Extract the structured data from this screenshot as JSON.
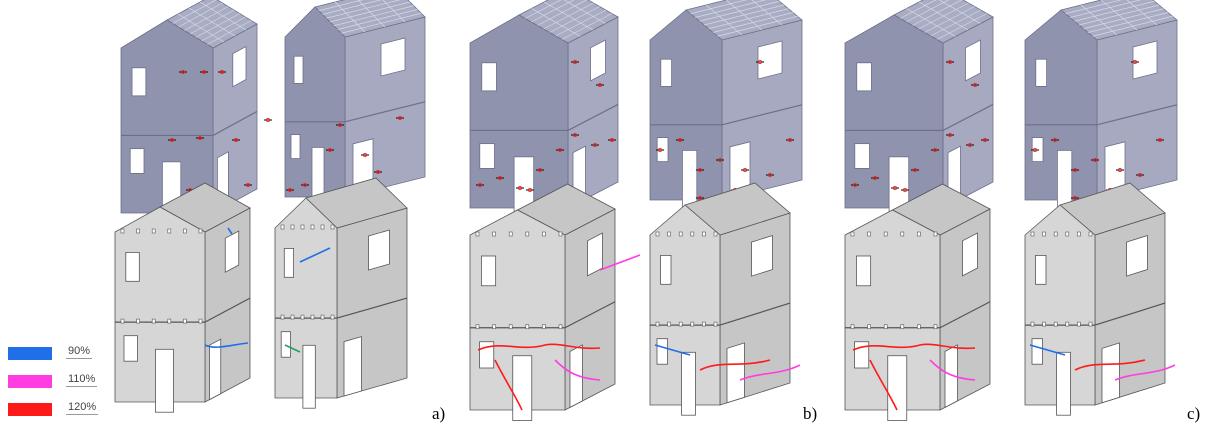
{
  "panels": [
    {
      "id": "a",
      "label": "a)"
    },
    {
      "id": "b",
      "label": "b)"
    },
    {
      "id": "c",
      "label": "c)"
    }
  ],
  "legend": [
    {
      "label": "90%",
      "color": "#1f6fe8"
    },
    {
      "label": "110%",
      "color": "#ff3de0"
    },
    {
      "label": "120%",
      "color": "#ff1a1a"
    }
  ],
  "colors": {
    "model_face": "#8f93ad",
    "model_side": "#a6a9c0",
    "model_roof": "#a9adc4",
    "model_edge": "#6b6f88",
    "crack_face": "#d6d6d6",
    "crack_side": "#c6c6c6",
    "crack_edge": "#555555",
    "hinge_marker": "#ff2020",
    "hinge_stroke": "#111111"
  }
}
